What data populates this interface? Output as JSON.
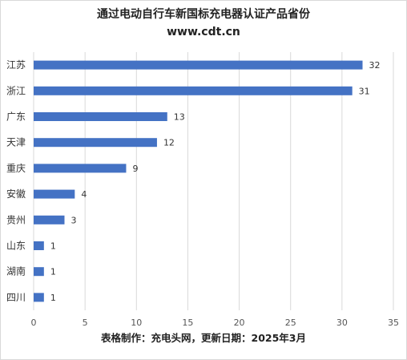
{
  "chart_data": {
    "type": "bar",
    "orientation": "horizontal",
    "title": "通过电动自行车新国标充电器认证产品省份",
    "subtitle": "www.cdt.cn",
    "footer": "表格制作：充电头网，更新日期：2025年3月",
    "categories": [
      "江苏",
      "浙江",
      "广东",
      "天津",
      "重庆",
      "安徽",
      "贵州",
      "山东",
      "湖南",
      "四川"
    ],
    "values": [
      32,
      31,
      13,
      12,
      9,
      4,
      3,
      1,
      1,
      1
    ],
    "xlim": [
      0,
      35
    ],
    "xticks": [
      "0",
      "5",
      "10",
      "15",
      "20",
      "25",
      "30",
      "35"
    ],
    "grid": true,
    "bar_color": "#4472c4",
    "grid_color": "#d9d9d9"
  }
}
